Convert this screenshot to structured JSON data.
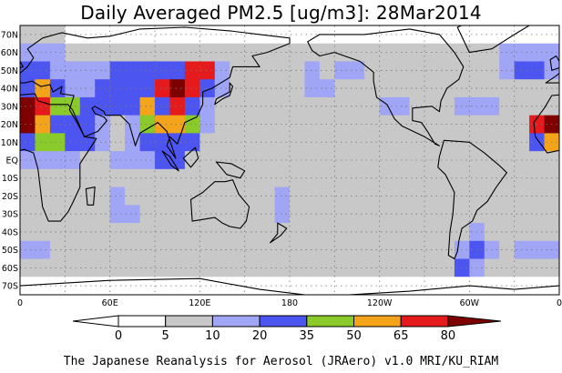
{
  "title": "Daily Averaged PM2.5 [ug/m3]: 28Mar2014",
  "credit": "The Japanese Reanalysis for Aerosol (JRAero) v1.0 MRI/KU_RIAM",
  "map": {
    "projection": "equirectangular",
    "lon_range": [
      0,
      360
    ],
    "lat_range": [
      -75,
      75
    ],
    "lat_ticks": [
      "70N",
      "60N",
      "50N",
      "40N",
      "30N",
      "20N",
      "10N",
      "EQ",
      "10S",
      "20S",
      "30S",
      "40S",
      "50S",
      "60S",
      "70S"
    ],
    "lon_ticks": [
      "0",
      "60E",
      "120E",
      "180",
      "120W",
      "60W",
      "0"
    ],
    "gridlines": "dotted"
  },
  "colorbar": {
    "levels": [
      "0",
      "5",
      "10",
      "20",
      "35",
      "50",
      "65",
      "80"
    ],
    "colors": [
      "#ffffff",
      "#ffffff",
      "#c8c8c8",
      "#a0a5f5",
      "#4d55f0",
      "#8acb2b",
      "#f4a41b",
      "#e41a1c",
      "#7f0000"
    ]
  },
  "chart_data": {
    "type": "heatmap",
    "title": "Daily Averaged PM2.5 [ug/m3]: 28Mar2014",
    "variable": "PM2.5",
    "units": "ug/m3",
    "date": "28Mar2014",
    "x_unit": "longitude (deg E)",
    "y_unit": "latitude (deg N)",
    "levels": [
      0,
      5,
      10,
      20,
      35,
      50,
      65,
      80
    ],
    "cell_size_deg": 10,
    "lon_centers": [
      5,
      15,
      25,
      35,
      45,
      55,
      65,
      75,
      85,
      95,
      105,
      115,
      125,
      135,
      145,
      155,
      165,
      175,
      185,
      195,
      205,
      215,
      225,
      235,
      245,
      255,
      265,
      275,
      285,
      295,
      305,
      315,
      325,
      335,
      345,
      355
    ],
    "lat_centers": [
      70,
      60,
      50,
      40,
      30,
      20,
      10,
      0,
      -10,
      -20,
      -30,
      -40,
      -50,
      -60,
      -70
    ],
    "grid_values": [
      [
        6,
        6,
        6,
        4,
        4,
        4,
        4,
        4,
        4,
        4,
        4,
        4,
        4,
        4,
        4,
        4,
        4,
        4,
        4,
        4,
        4,
        4,
        4,
        4,
        4,
        4,
        4,
        4,
        4,
        4,
        4,
        4,
        4,
        4,
        4,
        4
      ],
      [
        12,
        14,
        12,
        8,
        6,
        6,
        6,
        6,
        6,
        6,
        6,
        6,
        6,
        6,
        6,
        6,
        6,
        6,
        6,
        6,
        6,
        6,
        6,
        8,
        6,
        6,
        6,
        6,
        6,
        6,
        6,
        6,
        12,
        15,
        12,
        12
      ],
      [
        25,
        28,
        14,
        12,
        12,
        14,
        22,
        26,
        22,
        28,
        22,
        75,
        72,
        12,
        8,
        6,
        6,
        7,
        8,
        12,
        8,
        14,
        12,
        8,
        6,
        6,
        6,
        6,
        6,
        6,
        6,
        6,
        14,
        22,
        22,
        14
      ],
      [
        30,
        55,
        22,
        14,
        12,
        30,
        32,
        28,
        30,
        70,
        85,
        68,
        30,
        12,
        7,
        7,
        8,
        9,
        8,
        14,
        12,
        8,
        7,
        6,
        7,
        6,
        6,
        6,
        6,
        8,
        7,
        6,
        8,
        6,
        6,
        7
      ],
      [
        90,
        70,
        40,
        38,
        24,
        30,
        34,
        22,
        55,
        30,
        68,
        28,
        14,
        8,
        8,
        8,
        9,
        8,
        8,
        7,
        6,
        6,
        6,
        6,
        12,
        12,
        7,
        6,
        8,
        14,
        16,
        12,
        9,
        7,
        8,
        6
      ],
      [
        82,
        52,
        32,
        30,
        24,
        12,
        9,
        12,
        45,
        50,
        55,
        40,
        12,
        7,
        7,
        6,
        6,
        6,
        6,
        6,
        6,
        6,
        6,
        6,
        6,
        7,
        8,
        6,
        6,
        6,
        8,
        7,
        8,
        8,
        66,
        85
      ],
      [
        26,
        44,
        40,
        30,
        20,
        12,
        8,
        12,
        22,
        30,
        28,
        22,
        8,
        6,
        6,
        6,
        6,
        6,
        6,
        6,
        6,
        6,
        6,
        6,
        6,
        6,
        7,
        6,
        6,
        6,
        6,
        6,
        6,
        8,
        24,
        60
      ],
      [
        14,
        18,
        14,
        12,
        8,
        8,
        10,
        12,
        12,
        24,
        22,
        8,
        7,
        6,
        6,
        6,
        6,
        6,
        6,
        6,
        6,
        6,
        6,
        6,
        6,
        6,
        6,
        6,
        6,
        6,
        6,
        6,
        6,
        6,
        6,
        8
      ],
      [
        7,
        6,
        6,
        6,
        6,
        6,
        6,
        6,
        6,
        6,
        6,
        6,
        6,
        6,
        7,
        7,
        7,
        8,
        6,
        6,
        6,
        6,
        6,
        6,
        6,
        6,
        6,
        6,
        6,
        6,
        6,
        6,
        6,
        6,
        6,
        6
      ],
      [
        6,
        6,
        6,
        6,
        6,
        8,
        12,
        6,
        6,
        6,
        6,
        6,
        6,
        6,
        6,
        6,
        6,
        12,
        8,
        8,
        6,
        6,
        6,
        6,
        7,
        8,
        6,
        6,
        6,
        6,
        6,
        6,
        6,
        6,
        6,
        6
      ],
      [
        8,
        6,
        6,
        6,
        6,
        8,
        14,
        12,
        6,
        6,
        7,
        6,
        6,
        7,
        8,
        6,
        7,
        12,
        8,
        6,
        6,
        6,
        6,
        8,
        7,
        6,
        6,
        6,
        6,
        6,
        6,
        6,
        8,
        7,
        6,
        6
      ],
      [
        8,
        7,
        7,
        8,
        8,
        7,
        9,
        8,
        8,
        7,
        7,
        8,
        7,
        8,
        9,
        8,
        7,
        8,
        8,
        7,
        7,
        7,
        7,
        8,
        8,
        8,
        9,
        8,
        8,
        7,
        14,
        8,
        8,
        7,
        6,
        6
      ],
      [
        14,
        12,
        8,
        8,
        8,
        8,
        9,
        8,
        8,
        8,
        8,
        8,
        8,
        8,
        9,
        8,
        8,
        8,
        8,
        8,
        8,
        8,
        8,
        8,
        8,
        8,
        8,
        8,
        8,
        12,
        22,
        14,
        8,
        12,
        14,
        16
      ],
      [
        7,
        8,
        8,
        6,
        6,
        7,
        8,
        8,
        7,
        8,
        8,
        7,
        8,
        8,
        8,
        8,
        8,
        8,
        8,
        7,
        7,
        8,
        8,
        8,
        8,
        8,
        8,
        7,
        8,
        30,
        12,
        8,
        6,
        7,
        8,
        7
      ],
      [
        3,
        3,
        3,
        3,
        3,
        3,
        3,
        3,
        3,
        3,
        3,
        3,
        3,
        3,
        3,
        3,
        3,
        3,
        3,
        3,
        3,
        3,
        3,
        3,
        3,
        3,
        3,
        3,
        3,
        3,
        3,
        3,
        3,
        3,
        3,
        3
      ]
    ]
  }
}
